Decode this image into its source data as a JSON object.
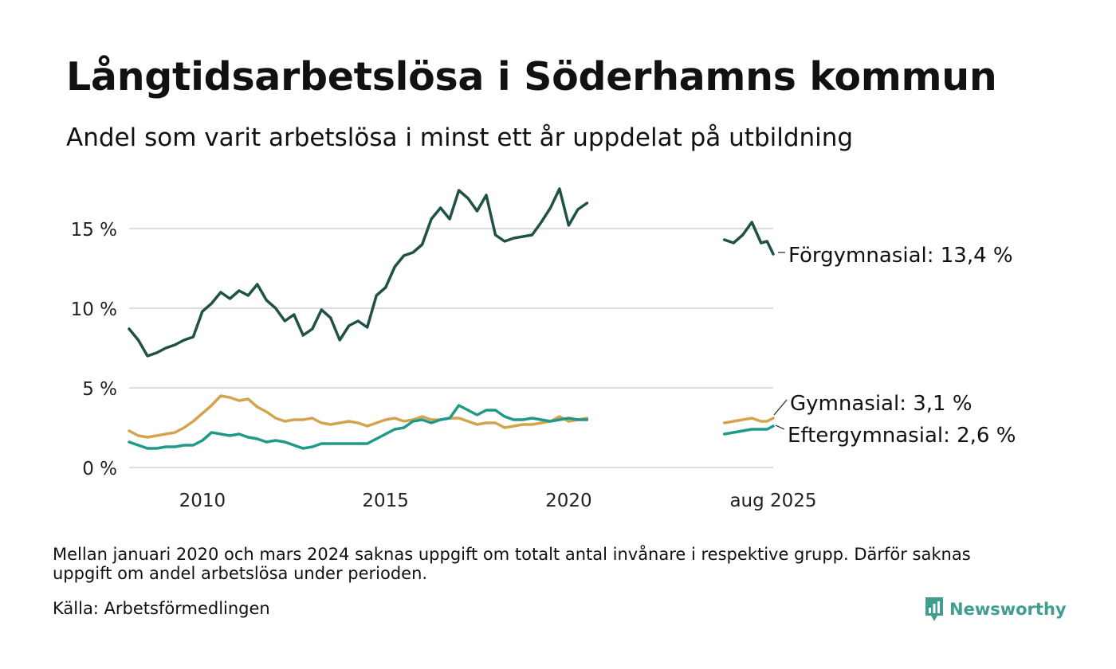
{
  "title": "Långtidsarbetslösa i Söderhamns kommun",
  "subtitle": "Andel som varit arbetslösa i minst ett år uppdelat på utbildning",
  "footnote": "Mellan januari 2020 och mars 2024 saknas uppgift om totalt antal invånare i respektive grupp. Därför saknas uppgift om andel arbetslösa under perioden.",
  "source": "Källa: Arbetsförmedlingen",
  "brand": "Newsworthy",
  "colors": {
    "forgymnasial": "#1f5147",
    "gymnasial": "#d4a34d",
    "eftergymnasial": "#1f9a8a",
    "grid": "#dddddd",
    "brand": "#3f9e8f"
  },
  "icons": {
    "logo": "bar-chart-speech-bubble-icon"
  },
  "chart_data": {
    "type": "line",
    "ylim": [
      0,
      17.5
    ],
    "grid": "horizontal",
    "yticks": [
      {
        "value": 0,
        "label": "0 %"
      },
      {
        "value": 5,
        "label": "5 %"
      },
      {
        "value": 10,
        "label": "10 %"
      },
      {
        "value": 15,
        "label": "15 %"
      }
    ],
    "xticks": [
      {
        "value": "2010-01",
        "label": "2010"
      },
      {
        "value": "2015-01",
        "label": "2015"
      },
      {
        "value": "2020-01",
        "label": "2020"
      },
      {
        "value": "2025-08",
        "label": "aug 2025"
      }
    ],
    "x_range": [
      "2008-01",
      "2025-08"
    ],
    "series": [
      {
        "key": "forgymnasial",
        "name": "Förgymnasial",
        "end_label": "Förgymnasial: 13,4 %",
        "segments": [
          [
            [
              "2008-01",
              8.7
            ],
            [
              "2008-04",
              8.0
            ],
            [
              "2008-07",
              7.0
            ],
            [
              "2008-10",
              7.2
            ],
            [
              "2009-01",
              7.5
            ],
            [
              "2009-04",
              7.7
            ],
            [
              "2009-07",
              8.0
            ],
            [
              "2009-10",
              8.2
            ],
            [
              "2010-01",
              9.8
            ],
            [
              "2010-04",
              10.3
            ],
            [
              "2010-07",
              11.0
            ],
            [
              "2010-10",
              10.6
            ],
            [
              "2011-01",
              11.1
            ],
            [
              "2011-04",
              10.8
            ],
            [
              "2011-07",
              11.5
            ],
            [
              "2011-10",
              10.5
            ],
            [
              "2012-01",
              10.0
            ],
            [
              "2012-04",
              9.2
            ],
            [
              "2012-07",
              9.6
            ],
            [
              "2012-10",
              8.3
            ],
            [
              "2013-01",
              8.7
            ],
            [
              "2013-04",
              9.9
            ],
            [
              "2013-07",
              9.4
            ],
            [
              "2013-10",
              8.0
            ],
            [
              "2014-01",
              8.9
            ],
            [
              "2014-04",
              9.2
            ],
            [
              "2014-07",
              8.8
            ],
            [
              "2014-10",
              10.8
            ],
            [
              "2015-01",
              11.3
            ],
            [
              "2015-04",
              12.6
            ],
            [
              "2015-07",
              13.3
            ],
            [
              "2015-10",
              13.5
            ],
            [
              "2016-01",
              14.0
            ],
            [
              "2016-04",
              15.6
            ],
            [
              "2016-07",
              16.3
            ],
            [
              "2016-10",
              15.6
            ],
            [
              "2017-01",
              17.4
            ],
            [
              "2017-04",
              16.9
            ],
            [
              "2017-07",
              16.1
            ],
            [
              "2017-10",
              17.1
            ],
            [
              "2018-01",
              14.6
            ],
            [
              "2018-04",
              14.2
            ],
            [
              "2018-07",
              14.4
            ],
            [
              "2018-10",
              14.5
            ],
            [
              "2019-01",
              14.6
            ],
            [
              "2019-04",
              15.4
            ],
            [
              "2019-07",
              16.3
            ],
            [
              "2019-10",
              17.5
            ],
            [
              "2020-01",
              15.2
            ],
            [
              "2020-04",
              16.2
            ],
            [
              "2020-07",
              16.6
            ]
          ],
          [
            [
              "2024-04",
              14.3
            ],
            [
              "2024-07",
              14.1
            ],
            [
              "2024-10",
              14.6
            ],
            [
              "2025-01",
              15.4
            ],
            [
              "2025-04",
              14.1
            ],
            [
              "2025-06",
              14.2
            ],
            [
              "2025-08",
              13.4
            ]
          ]
        ]
      },
      {
        "key": "gymnasial",
        "name": "Gymnasial",
        "end_label": "Gymnasial:  3,1 %",
        "segments": [
          [
            [
              "2008-01",
              2.3
            ],
            [
              "2008-04",
              2.0
            ],
            [
              "2008-07",
              1.9
            ],
            [
              "2008-10",
              2.0
            ],
            [
              "2009-01",
              2.1
            ],
            [
              "2009-04",
              2.2
            ],
            [
              "2009-07",
              2.5
            ],
            [
              "2009-10",
              2.9
            ],
            [
              "2010-01",
              3.4
            ],
            [
              "2010-04",
              3.9
            ],
            [
              "2010-07",
              4.5
            ],
            [
              "2010-10",
              4.4
            ],
            [
              "2011-01",
              4.2
            ],
            [
              "2011-04",
              4.3
            ],
            [
              "2011-07",
              3.8
            ],
            [
              "2011-10",
              3.5
            ],
            [
              "2012-01",
              3.1
            ],
            [
              "2012-04",
              2.9
            ],
            [
              "2012-07",
              3.0
            ],
            [
              "2012-10",
              3.0
            ],
            [
              "2013-01",
              3.1
            ],
            [
              "2013-04",
              2.8
            ],
            [
              "2013-07",
              2.7
            ],
            [
              "2013-10",
              2.8
            ],
            [
              "2014-01",
              2.9
            ],
            [
              "2014-04",
              2.8
            ],
            [
              "2014-07",
              2.6
            ],
            [
              "2014-10",
              2.8
            ],
            [
              "2015-01",
              3.0
            ],
            [
              "2015-04",
              3.1
            ],
            [
              "2015-07",
              2.9
            ],
            [
              "2015-10",
              3.0
            ],
            [
              "2016-01",
              3.2
            ],
            [
              "2016-04",
              3.0
            ],
            [
              "2016-07",
              3.0
            ],
            [
              "2016-10",
              3.1
            ],
            [
              "2017-01",
              3.1
            ],
            [
              "2017-04",
              2.9
            ],
            [
              "2017-07",
              2.7
            ],
            [
              "2017-10",
              2.8
            ],
            [
              "2018-01",
              2.8
            ],
            [
              "2018-04",
              2.5
            ],
            [
              "2018-07",
              2.6
            ],
            [
              "2018-10",
              2.7
            ],
            [
              "2019-01",
              2.7
            ],
            [
              "2019-04",
              2.8
            ],
            [
              "2019-07",
              2.9
            ],
            [
              "2019-10",
              3.2
            ],
            [
              "2020-01",
              2.9
            ],
            [
              "2020-04",
              3.0
            ],
            [
              "2020-07",
              3.1
            ]
          ],
          [
            [
              "2024-04",
              2.8
            ],
            [
              "2024-07",
              2.9
            ],
            [
              "2024-10",
              3.0
            ],
            [
              "2025-01",
              3.1
            ],
            [
              "2025-04",
              2.9
            ],
            [
              "2025-06",
              2.9
            ],
            [
              "2025-08",
              3.1
            ]
          ]
        ]
      },
      {
        "key": "eftergymnasial",
        "name": "Eftergymnasial",
        "end_label": "Eftergymnasial:  2,6 %",
        "segments": [
          [
            [
              "2008-01",
              1.6
            ],
            [
              "2008-04",
              1.4
            ],
            [
              "2008-07",
              1.2
            ],
            [
              "2008-10",
              1.2
            ],
            [
              "2009-01",
              1.3
            ],
            [
              "2009-04",
              1.3
            ],
            [
              "2009-07",
              1.4
            ],
            [
              "2009-10",
              1.4
            ],
            [
              "2010-01",
              1.7
            ],
            [
              "2010-04",
              2.2
            ],
            [
              "2010-07",
              2.1
            ],
            [
              "2010-10",
              2.0
            ],
            [
              "2011-01",
              2.1
            ],
            [
              "2011-04",
              1.9
            ],
            [
              "2011-07",
              1.8
            ],
            [
              "2011-10",
              1.6
            ],
            [
              "2012-01",
              1.7
            ],
            [
              "2012-04",
              1.6
            ],
            [
              "2012-07",
              1.4
            ],
            [
              "2012-10",
              1.2
            ],
            [
              "2013-01",
              1.3
            ],
            [
              "2013-04",
              1.5
            ],
            [
              "2013-07",
              1.5
            ],
            [
              "2013-10",
              1.5
            ],
            [
              "2014-01",
              1.5
            ],
            [
              "2014-04",
              1.5
            ],
            [
              "2014-07",
              1.5
            ],
            [
              "2014-10",
              1.8
            ],
            [
              "2015-01",
              2.1
            ],
            [
              "2015-04",
              2.4
            ],
            [
              "2015-07",
              2.5
            ],
            [
              "2015-10",
              2.9
            ],
            [
              "2016-01",
              3.0
            ],
            [
              "2016-04",
              2.8
            ],
            [
              "2016-07",
              3.0
            ],
            [
              "2016-10",
              3.1
            ],
            [
              "2017-01",
              3.9
            ],
            [
              "2017-04",
              3.6
            ],
            [
              "2017-07",
              3.3
            ],
            [
              "2017-10",
              3.6
            ],
            [
              "2018-01",
              3.6
            ],
            [
              "2018-04",
              3.2
            ],
            [
              "2018-07",
              3.0
            ],
            [
              "2018-10",
              3.0
            ],
            [
              "2019-01",
              3.1
            ],
            [
              "2019-04",
              3.0
            ],
            [
              "2019-07",
              2.9
            ],
            [
              "2019-10",
              3.0
            ],
            [
              "2020-01",
              3.1
            ],
            [
              "2020-04",
              3.0
            ],
            [
              "2020-07",
              3.0
            ]
          ],
          [
            [
              "2024-04",
              2.1
            ],
            [
              "2024-07",
              2.2
            ],
            [
              "2024-10",
              2.3
            ],
            [
              "2025-01",
              2.4
            ],
            [
              "2025-04",
              2.4
            ],
            [
              "2025-06",
              2.4
            ],
            [
              "2025-08",
              2.6
            ]
          ]
        ]
      }
    ]
  }
}
